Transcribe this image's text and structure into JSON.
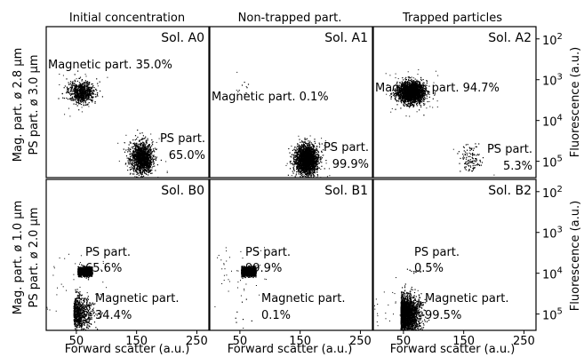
{
  "chart_data": {
    "type": "scatter",
    "layout": "2x3 grid of flow cytometry dot plots",
    "column_titles": [
      "Initial concentration",
      "Non-trapped part.",
      "Trapped particles"
    ],
    "row_labels": [
      [
        "Mag. part. ø 2.8 μm",
        "PS part. ø 3.0 μm"
      ],
      [
        "Mag. part. ø 1.0 μm",
        "PS part. ø 2.0 μm"
      ]
    ],
    "xlabel": "Forward scatter (a.u.)",
    "ylabel": "Fluorescence (a.u.)",
    "x_ticks": [
      "50",
      "150",
      "250"
    ],
    "xlim": [
      0,
      270
    ],
    "y_ticks": [
      {
        "base": "10",
        "exp": "2"
      },
      {
        "base": "10",
        "exp": "3"
      },
      {
        "base": "10",
        "exp": "4"
      },
      {
        "base": "10",
        "exp": "5"
      }
    ],
    "y_scale": "log",
    "grid": false,
    "panels": [
      {
        "name": "Sol. A0",
        "row": 0,
        "col": 0,
        "annotations": [
          {
            "lines": [
              "Magnetic part. 35.0%"
            ]
          },
          {
            "lines": [
              "PS part.",
              "65.0%"
            ]
          }
        ],
        "clusters": [
          {
            "kind": "magnetic",
            "percent": 35.0,
            "center_fsc": 58,
            "center_fl_exp": 3.3
          },
          {
            "kind": "PS",
            "percent": 65.0,
            "center_fsc": 158,
            "center_fl_exp": 4.9
          }
        ]
      },
      {
        "name": "Sol. A1",
        "row": 0,
        "col": 1,
        "annotations": [
          {
            "lines": [
              "Magnetic part. 0.1%"
            ]
          },
          {
            "lines": [
              "PS part.",
              "99.9%"
            ]
          }
        ],
        "clusters": [
          {
            "kind": "magnetic",
            "percent": 0.1,
            "center_fsc": 57,
            "center_fl_exp": 3.2
          },
          {
            "kind": "PS",
            "percent": 99.9,
            "center_fsc": 160,
            "center_fl_exp": 4.95
          }
        ]
      },
      {
        "name": "Sol. A2",
        "row": 0,
        "col": 2,
        "annotations": [
          {
            "lines": [
              "Magnetic part. 94.7%"
            ]
          },
          {
            "lines": [
              "PS part.",
              "5.3%"
            ]
          }
        ],
        "clusters": [
          {
            "kind": "magnetic",
            "percent": 94.7,
            "center_fsc": 62,
            "center_fl_exp": 3.3
          },
          {
            "kind": "PS",
            "percent": 5.3,
            "center_fsc": 160,
            "center_fl_exp": 4.95
          }
        ]
      },
      {
        "name": "Sol. B0",
        "row": 1,
        "col": 0,
        "annotations": [
          {
            "lines": [
              "PS part.",
              "65.6%"
            ]
          },
          {
            "lines": [
              "Magnetic part.",
              "34.4%"
            ]
          }
        ],
        "clusters": [
          {
            "kind": "PS",
            "percent": 65.6,
            "center_fsc": 55,
            "center_fl_exp": 3.95
          },
          {
            "kind": "magnetic",
            "percent": 34.4,
            "center_fsc": 45,
            "center_fl_exp": 5.0
          }
        ]
      },
      {
        "name": "Sol. B1",
        "row": 1,
        "col": 1,
        "annotations": [
          {
            "lines": [
              "PS part.",
              "99.9%"
            ]
          },
          {
            "lines": [
              "Magnetic part.",
              "0.1%"
            ]
          }
        ],
        "clusters": [
          {
            "kind": "PS",
            "percent": 99.9,
            "center_fsc": 55,
            "center_fl_exp": 3.95
          },
          {
            "kind": "magnetic",
            "percent": 0.1,
            "center_fsc": 40,
            "center_fl_exp": 5.0
          }
        ]
      },
      {
        "name": "Sol. B2",
        "row": 1,
        "col": 2,
        "annotations": [
          {
            "lines": [
              "PS part.",
              "0.5%"
            ]
          },
          {
            "lines": [
              "Magnetic part.",
              "99.5%"
            ]
          }
        ],
        "clusters": [
          {
            "kind": "PS",
            "percent": 0.5,
            "center_fsc": 57,
            "center_fl_exp": 3.95
          },
          {
            "kind": "magnetic",
            "percent": 99.5,
            "center_fsc": 45,
            "center_fl_exp": 5.0
          }
        ]
      }
    ]
  }
}
